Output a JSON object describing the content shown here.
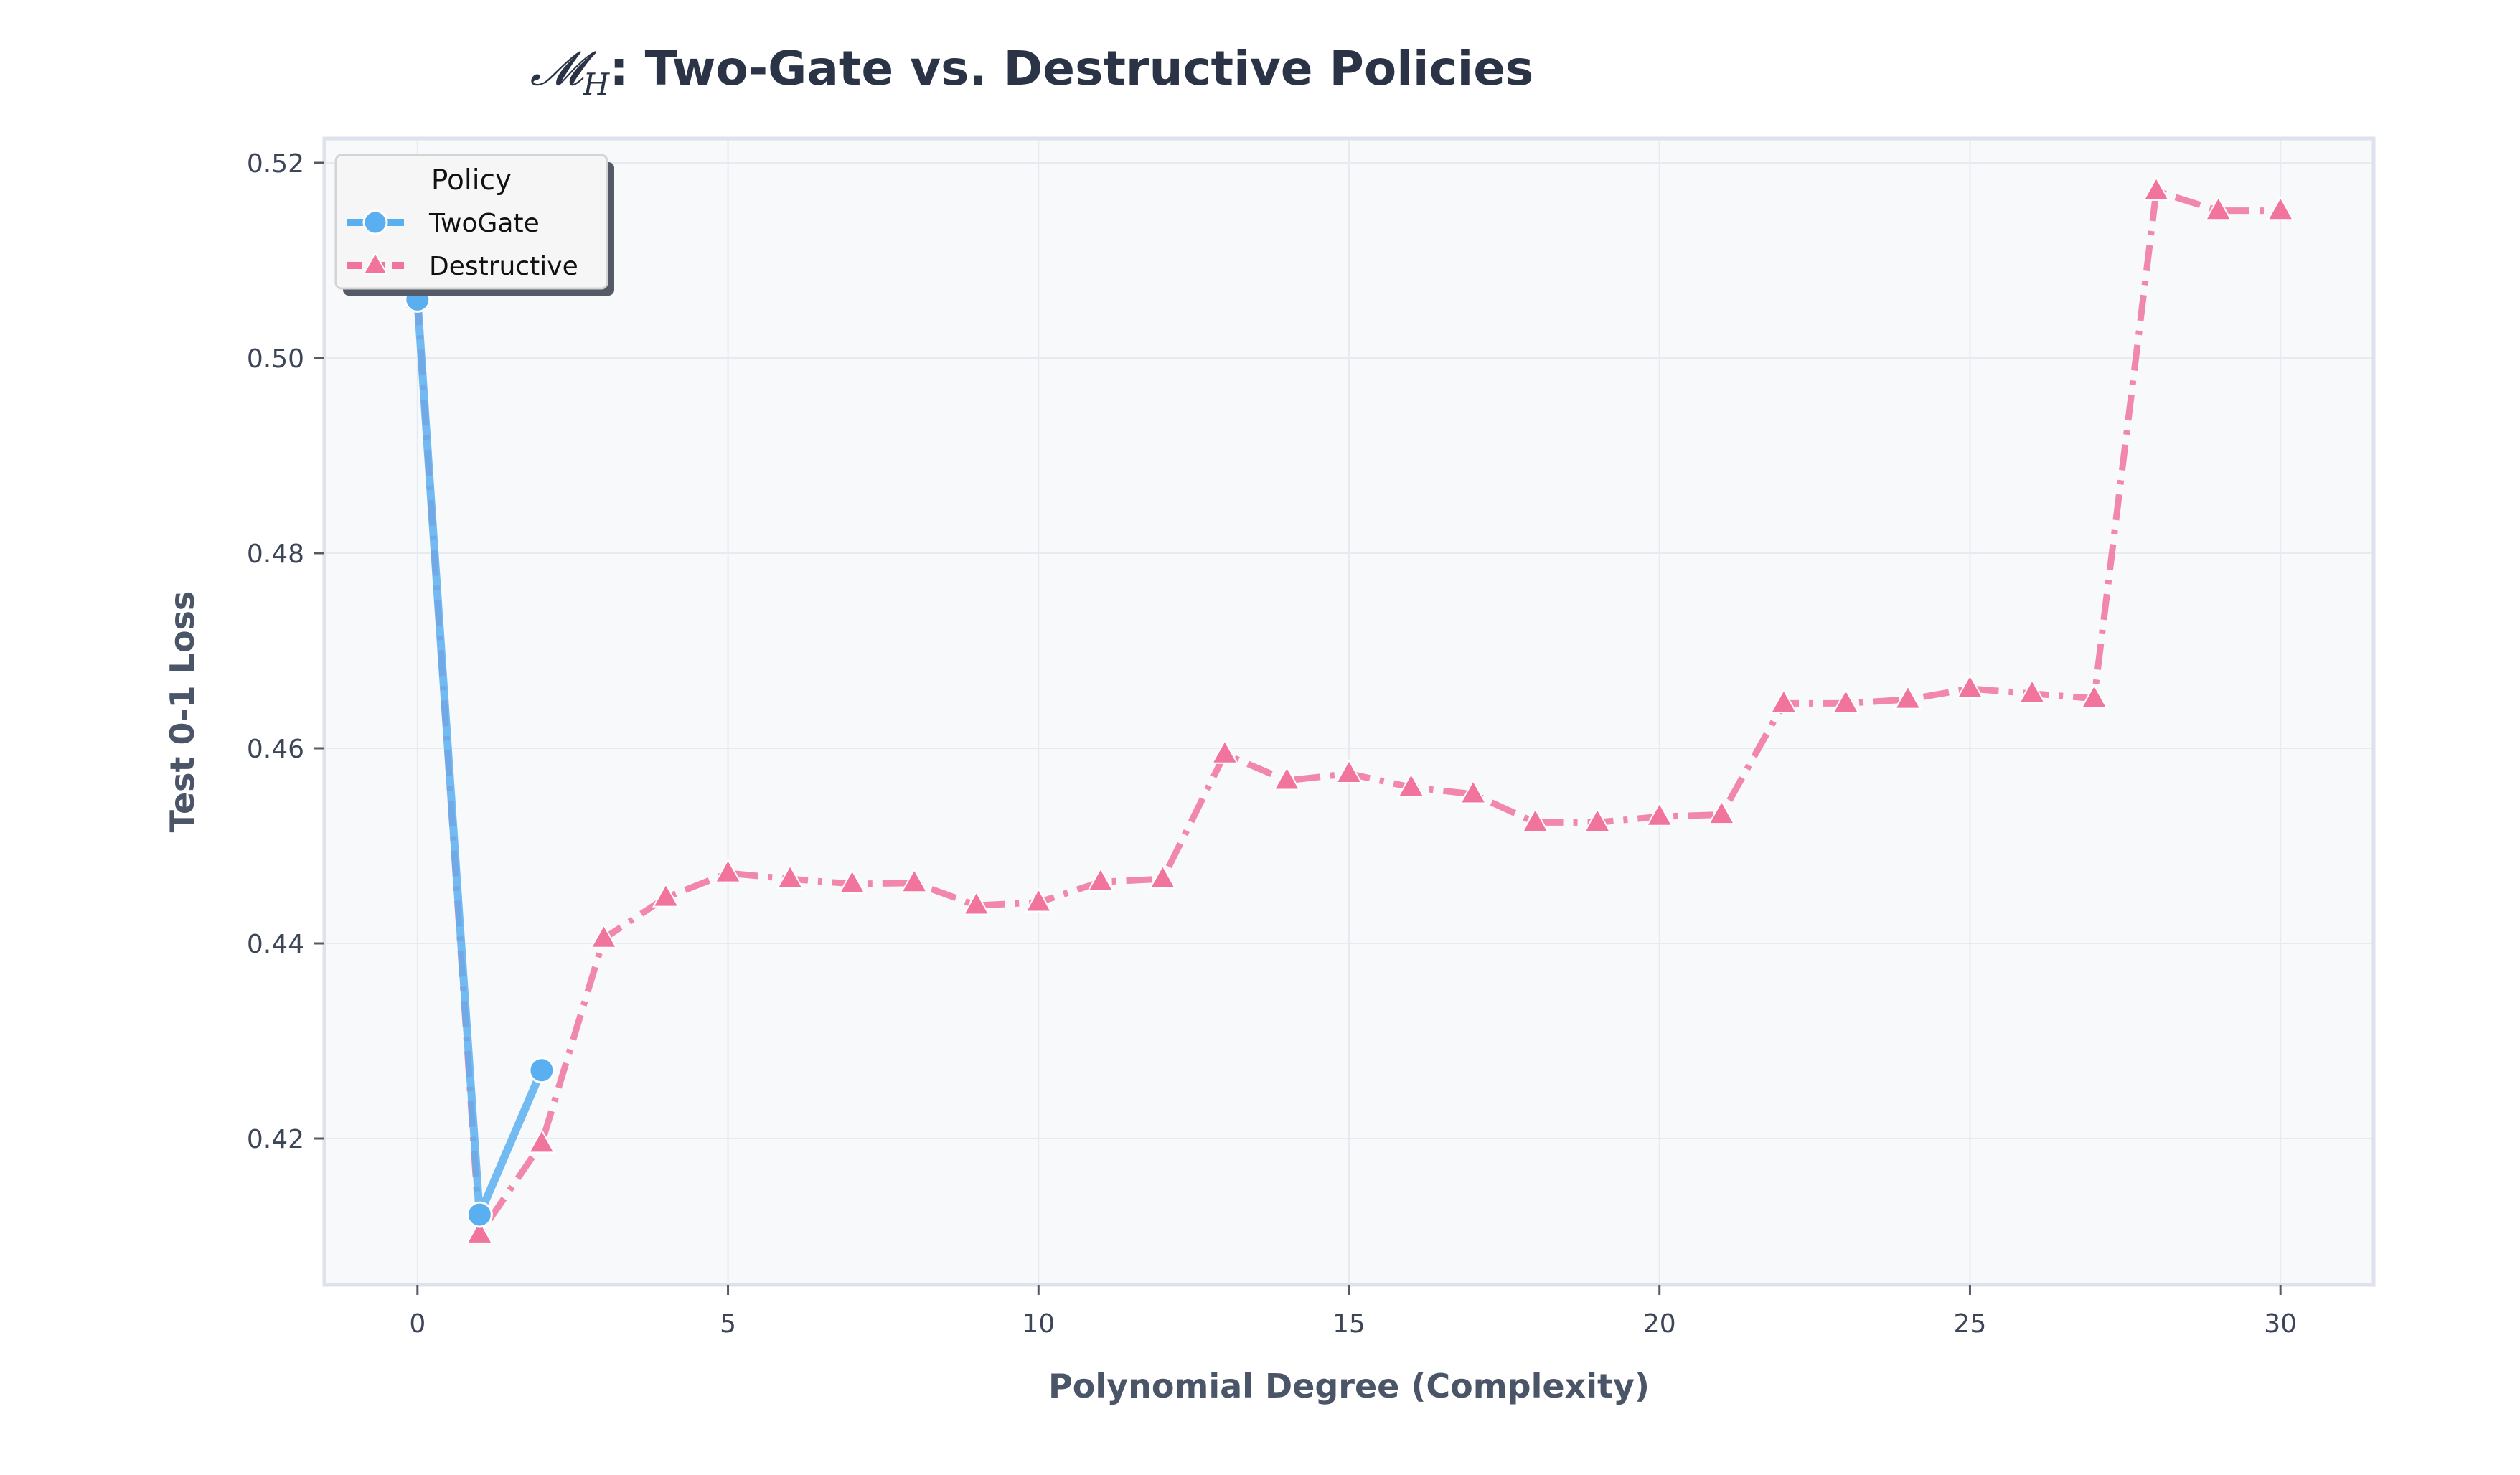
{
  "chart_data": {
    "type": "line",
    "title_symbol": "𝓜",
    "title_subscript": "H",
    "title_rest": ": Two-Gate vs. Destructive Policies",
    "xlabel": "Polynomial Degree (Complexity)",
    "ylabel": "Test 0-1 Loss",
    "xlim": [
      -1.5,
      31.5
    ],
    "ylim": [
      0.405,
      0.5225
    ],
    "xticks": [
      0,
      5,
      10,
      15,
      20,
      25,
      30
    ],
    "yticks": [
      0.42,
      0.44,
      0.46,
      0.48,
      0.5,
      0.52
    ],
    "ytick_labels": [
      "0.42",
      "0.44",
      "0.46",
      "0.48",
      "0.50",
      "0.52"
    ],
    "grid": true,
    "legend": {
      "title": "Policy",
      "placement": "top-left"
    },
    "series": [
      {
        "name": "TwoGate",
        "color": "#5aaff0",
        "line_style": "solid",
        "marker": "circle",
        "x": [
          0,
          1,
          2
        ],
        "y": [
          0.506,
          0.4122,
          0.427
        ]
      },
      {
        "name": "Destructive",
        "color": "#f0749c",
        "line_style": "dash-dot",
        "marker": "triangle",
        "x": [
          0,
          1,
          2,
          3,
          4,
          5,
          6,
          7,
          8,
          9,
          10,
          11,
          12,
          13,
          14,
          15,
          16,
          17,
          18,
          19,
          20,
          21,
          22,
          23,
          24,
          25,
          26,
          27,
          28,
          29,
          30
        ],
        "y": [
          0.506,
          0.4102,
          0.4195,
          0.4405,
          0.4447,
          0.4472,
          0.4466,
          0.4461,
          0.4462,
          0.4439,
          0.4442,
          0.4463,
          0.4466,
          0.4594,
          0.4567,
          0.4574,
          0.456,
          0.4553,
          0.4524,
          0.4524,
          0.453,
          0.4532,
          0.4646,
          0.4646,
          0.465,
          0.4661,
          0.4656,
          0.4651,
          0.5171,
          0.5151,
          0.5151
        ]
      }
    ]
  }
}
